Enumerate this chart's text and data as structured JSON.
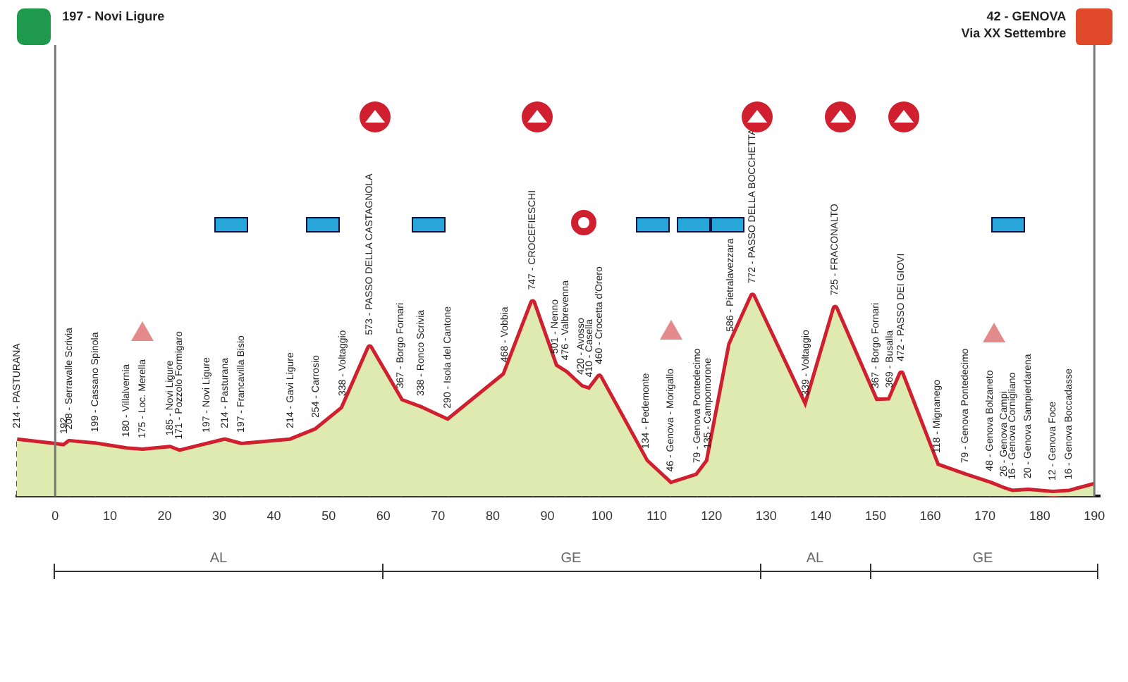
{
  "chart_data": {
    "type": "area",
    "x": [
      -7,
      0,
      1.6,
      2.6,
      7.3,
      13,
      16,
      21,
      22.7,
      27.7,
      31,
      34,
      43,
      47.7,
      52.6,
      57.5,
      63.2,
      66.9,
      71.8,
      82.2,
      87.3,
      91.4,
      93.3,
      96.2,
      97.7,
      99.5,
      108,
      112.5,
      117.4,
      119.4,
      123.5,
      127.5,
      137.2,
      142.6,
      150,
      152.6,
      154.7,
      161.2,
      166.4,
      170.9,
      173.5,
      175,
      177.9,
      182.4,
      185.4,
      190
    ],
    "series": [
      {
        "color": "#dfeab0",
        "values": [
          214,
          197,
          192,
          208,
          199,
          180,
          175,
          185,
          171,
          197,
          214,
          197,
          214,
          254,
          338,
          573,
          367,
          338,
          290,
          468,
          747,
          501,
          476,
          420,
          410,
          460,
          134,
          46,
          79,
          135,
          586,
          772,
          339,
          725,
          367,
          369,
          472,
          118,
          79,
          48,
          26,
          16,
          20,
          12,
          16,
          42
        ]
      },
      {
        "type": "line",
        "color": "#d01f2e",
        "values": [
          214,
          197,
          192,
          208,
          199,
          180,
          175,
          185,
          171,
          197,
          214,
          197,
          214,
          254,
          338,
          573,
          367,
          338,
          290,
          468,
          747,
          501,
          476,
          420,
          410,
          460,
          134,
          46,
          79,
          135,
          586,
          772,
          339,
          725,
          367,
          369,
          472,
          118,
          79,
          48,
          26,
          16,
          20,
          12,
          16,
          42
        ],
        "value_labels": [
          "214 - PASTURANA",
          null,
          "192",
          "208 - Serravalle Scrivia",
          "199 - Cassano Spinola",
          "180 - Villalvernia",
          "175 - Loc. Merella",
          "185 - Novi Ligure",
          "171 - Pozzolo Formigaro",
          "197 - Novi Ligure",
          "214 - Pasturana",
          "197 - Francavilla Bisio",
          "214 - Gavi Ligure",
          "254 - Carrosio",
          "338 - Voltaggio",
          "573 - PASSO DELLA CASTAGNOLA",
          "367 - Borgo Fornari",
          "338 - Ronco Scrivia",
          "290 - Isola del Cantone",
          "468 - Vobbia",
          "747 - CROCEFIESCHI",
          "501 - Nenno",
          "476 - Valbrevenna",
          "420 - Avosso",
          "410 - Casella",
          "460 - Crocetta d'Orero",
          "134 - Pedemonte",
          "46 - Genova - Morigallo",
          "79 - Genova Pontedecimo",
          "135 - Campomorone",
          "586 - Pietralavezzara",
          "772 - PASSO DELLA BOCCHETTA",
          "339 - Voltaggio",
          "725 - FRACONALTO",
          "367 - Borgo Fornari",
          "369 - Busalla",
          "472 - PASSO DEI GIOVI",
          "118 - Mignanego",
          "79 - Genova Pontedecimo",
          "48 - Genova Bolzaneto",
          "26 - Genova Campi",
          "16 - Genova Cornigliano",
          "20 - Genova Sampierdarena",
          "12 - Genova Foce",
          "16 - Genova Boccadasse",
          null
        ]
      }
    ],
    "xlim": [
      -7,
      191
    ],
    "xticks": [
      0,
      10,
      20,
      30,
      40,
      50,
      60,
      70,
      80,
      90,
      100,
      110,
      120,
      130,
      140,
      150,
      160,
      170,
      180,
      190
    ],
    "tick_labels": "x",
    "grid": false,
    "legend": false,
    "ref_lines": [
      {
        "axis": "x",
        "value": 0,
        "label": "197 - Novi Ligure"
      },
      {
        "axis": "x",
        "value": 190,
        "label": "42 - GENOVA\nVia XX Settembre"
      }
    ],
    "annotations": [
      "AL",
      "GE",
      "AL",
      "GE"
    ]
  }
}
